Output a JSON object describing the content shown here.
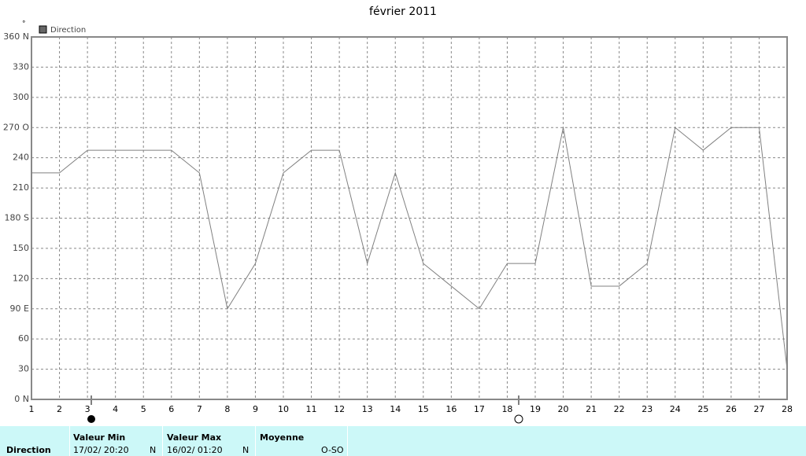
{
  "chart_data": {
    "type": "line",
    "title": "février 2011",
    "y_label": "°",
    "x": [
      1,
      2,
      3,
      4,
      5,
      6,
      7,
      8,
      9,
      10,
      11,
      12,
      13,
      14,
      15,
      16,
      17,
      18,
      19,
      20,
      21,
      22,
      23,
      24,
      25,
      26,
      27,
      28
    ],
    "xlim": [
      1,
      28
    ],
    "xticks": [
      1,
      2,
      3,
      4,
      5,
      6,
      7,
      8,
      9,
      10,
      11,
      12,
      13,
      14,
      15,
      16,
      17,
      18,
      19,
      20,
      21,
      22,
      23,
      24,
      25,
      26,
      27,
      28
    ],
    "ylim": [
      0,
      360
    ],
    "yticks": [
      {
        "value": 0,
        "label": "0   N"
      },
      30,
      60,
      {
        "value": 90,
        "label": "90   E"
      },
      120,
      150,
      {
        "value": 180,
        "label": "180 S"
      },
      210,
      240,
      {
        "value": 270,
        "label": "270 O"
      },
      300,
      330,
      {
        "value": 360,
        "label": "360 N"
      }
    ],
    "grid": true,
    "series": [
      {
        "name": "Direction",
        "color": "#808080",
        "values": [
          225,
          225,
          247.5,
          247.5,
          247.5,
          247.5,
          225,
          90,
          135,
          225,
          247.5,
          247.5,
          135,
          225,
          135,
          112.5,
          90,
          135,
          135,
          270,
          112.5,
          112.5,
          135,
          270,
          247.5,
          270,
          270,
          30
        ]
      }
    ]
  },
  "table": {
    "row_label": "Direction",
    "columns": [
      {
        "header": "Valeur Min",
        "date": "17/02/  20:20",
        "dir": "N"
      },
      {
        "header": "Valeur Max",
        "date": "16/02/  01:20",
        "dir": "N"
      },
      {
        "header": "Moyenne",
        "dir": "O-SO"
      }
    ]
  }
}
